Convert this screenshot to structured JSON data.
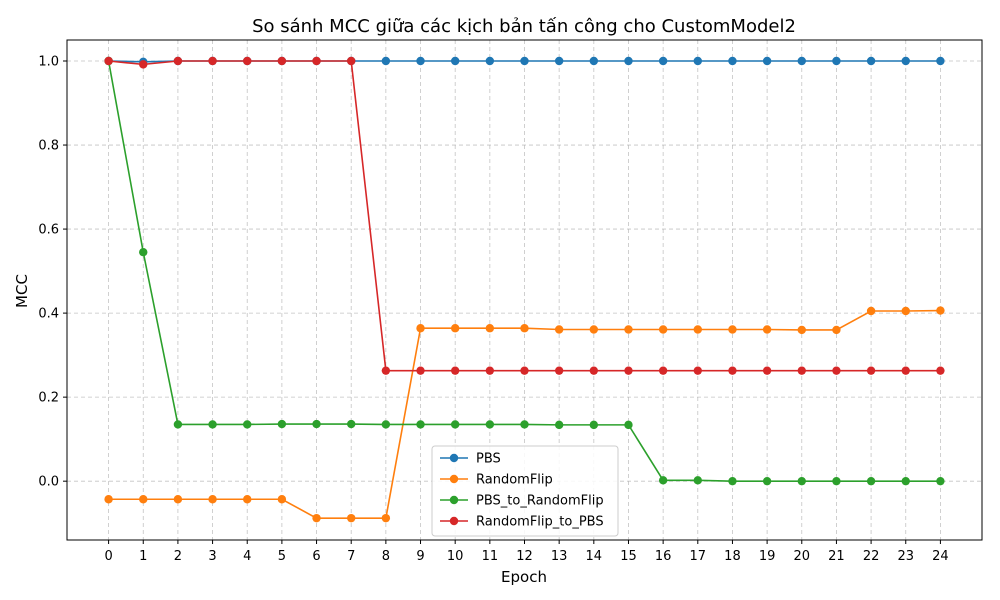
{
  "chart_data": {
    "type": "line",
    "title": "So sánh MCC giữa các kịch bản tấn công cho CustomModel2",
    "xlabel": "Epoch",
    "ylabel": "MCC",
    "x": [
      0,
      1,
      2,
      3,
      4,
      5,
      6,
      7,
      8,
      9,
      10,
      11,
      12,
      13,
      14,
      15,
      16,
      17,
      18,
      19,
      20,
      21,
      22,
      23,
      24
    ],
    "xticks": [
      "0",
      "1",
      "2",
      "3",
      "4",
      "5",
      "6",
      "7",
      "8",
      "9",
      "10",
      "11",
      "12",
      "13",
      "14",
      "15",
      "16",
      "17",
      "18",
      "19",
      "20",
      "21",
      "22",
      "23",
      "24"
    ],
    "yticks": [
      "0.0",
      "0.2",
      "0.4",
      "0.6",
      "0.8",
      "1.0"
    ],
    "yticks_values": [
      0.0,
      0.2,
      0.4,
      0.6,
      0.8,
      1.0
    ],
    "xlim": [
      -1.2,
      25.2
    ],
    "ylim": [
      -0.14,
      1.05
    ],
    "grid": true,
    "legend_position": "lower-center",
    "series": [
      {
        "name": "PBS",
        "color": "#1f77b4",
        "values": [
          1.0,
          0.998,
          1.0,
          1.0,
          1.0,
          1.0,
          1.0,
          1.0,
          1.0,
          1.0,
          1.0,
          1.0,
          1.0,
          1.0,
          1.0,
          1.0,
          1.0,
          1.0,
          1.0,
          1.0,
          1.0,
          1.0,
          1.0,
          1.0,
          1.0
        ]
      },
      {
        "name": "RandomFlip",
        "color": "#ff7f0e",
        "values": [
          -0.043,
          -0.043,
          -0.043,
          -0.043,
          -0.043,
          -0.043,
          -0.088,
          -0.088,
          -0.088,
          0.364,
          0.364,
          0.364,
          0.364,
          0.361,
          0.361,
          0.361,
          0.361,
          0.361,
          0.361,
          0.361,
          0.36,
          0.36,
          0.405,
          0.405,
          0.406
        ]
      },
      {
        "name": "PBS_to_RandomFlip",
        "color": "#2ca02c",
        "values": [
          1.0,
          0.545,
          0.135,
          0.135,
          0.135,
          0.136,
          0.136,
          0.136,
          0.135,
          0.135,
          0.135,
          0.135,
          0.135,
          0.134,
          0.134,
          0.134,
          0.002,
          0.002,
          0.0,
          0.0,
          0.0,
          0.0,
          0.0,
          0.0,
          0.0
        ]
      },
      {
        "name": "RandomFlip_to_PBS",
        "color": "#d62728",
        "values": [
          1.0,
          0.992,
          1.0,
          1.0,
          1.0,
          1.0,
          1.0,
          1.0,
          0.263,
          0.263,
          0.263,
          0.263,
          0.263,
          0.263,
          0.263,
          0.263,
          0.263,
          0.263,
          0.263,
          0.263,
          0.263,
          0.263,
          0.263,
          0.263,
          0.263
        ]
      }
    ]
  }
}
